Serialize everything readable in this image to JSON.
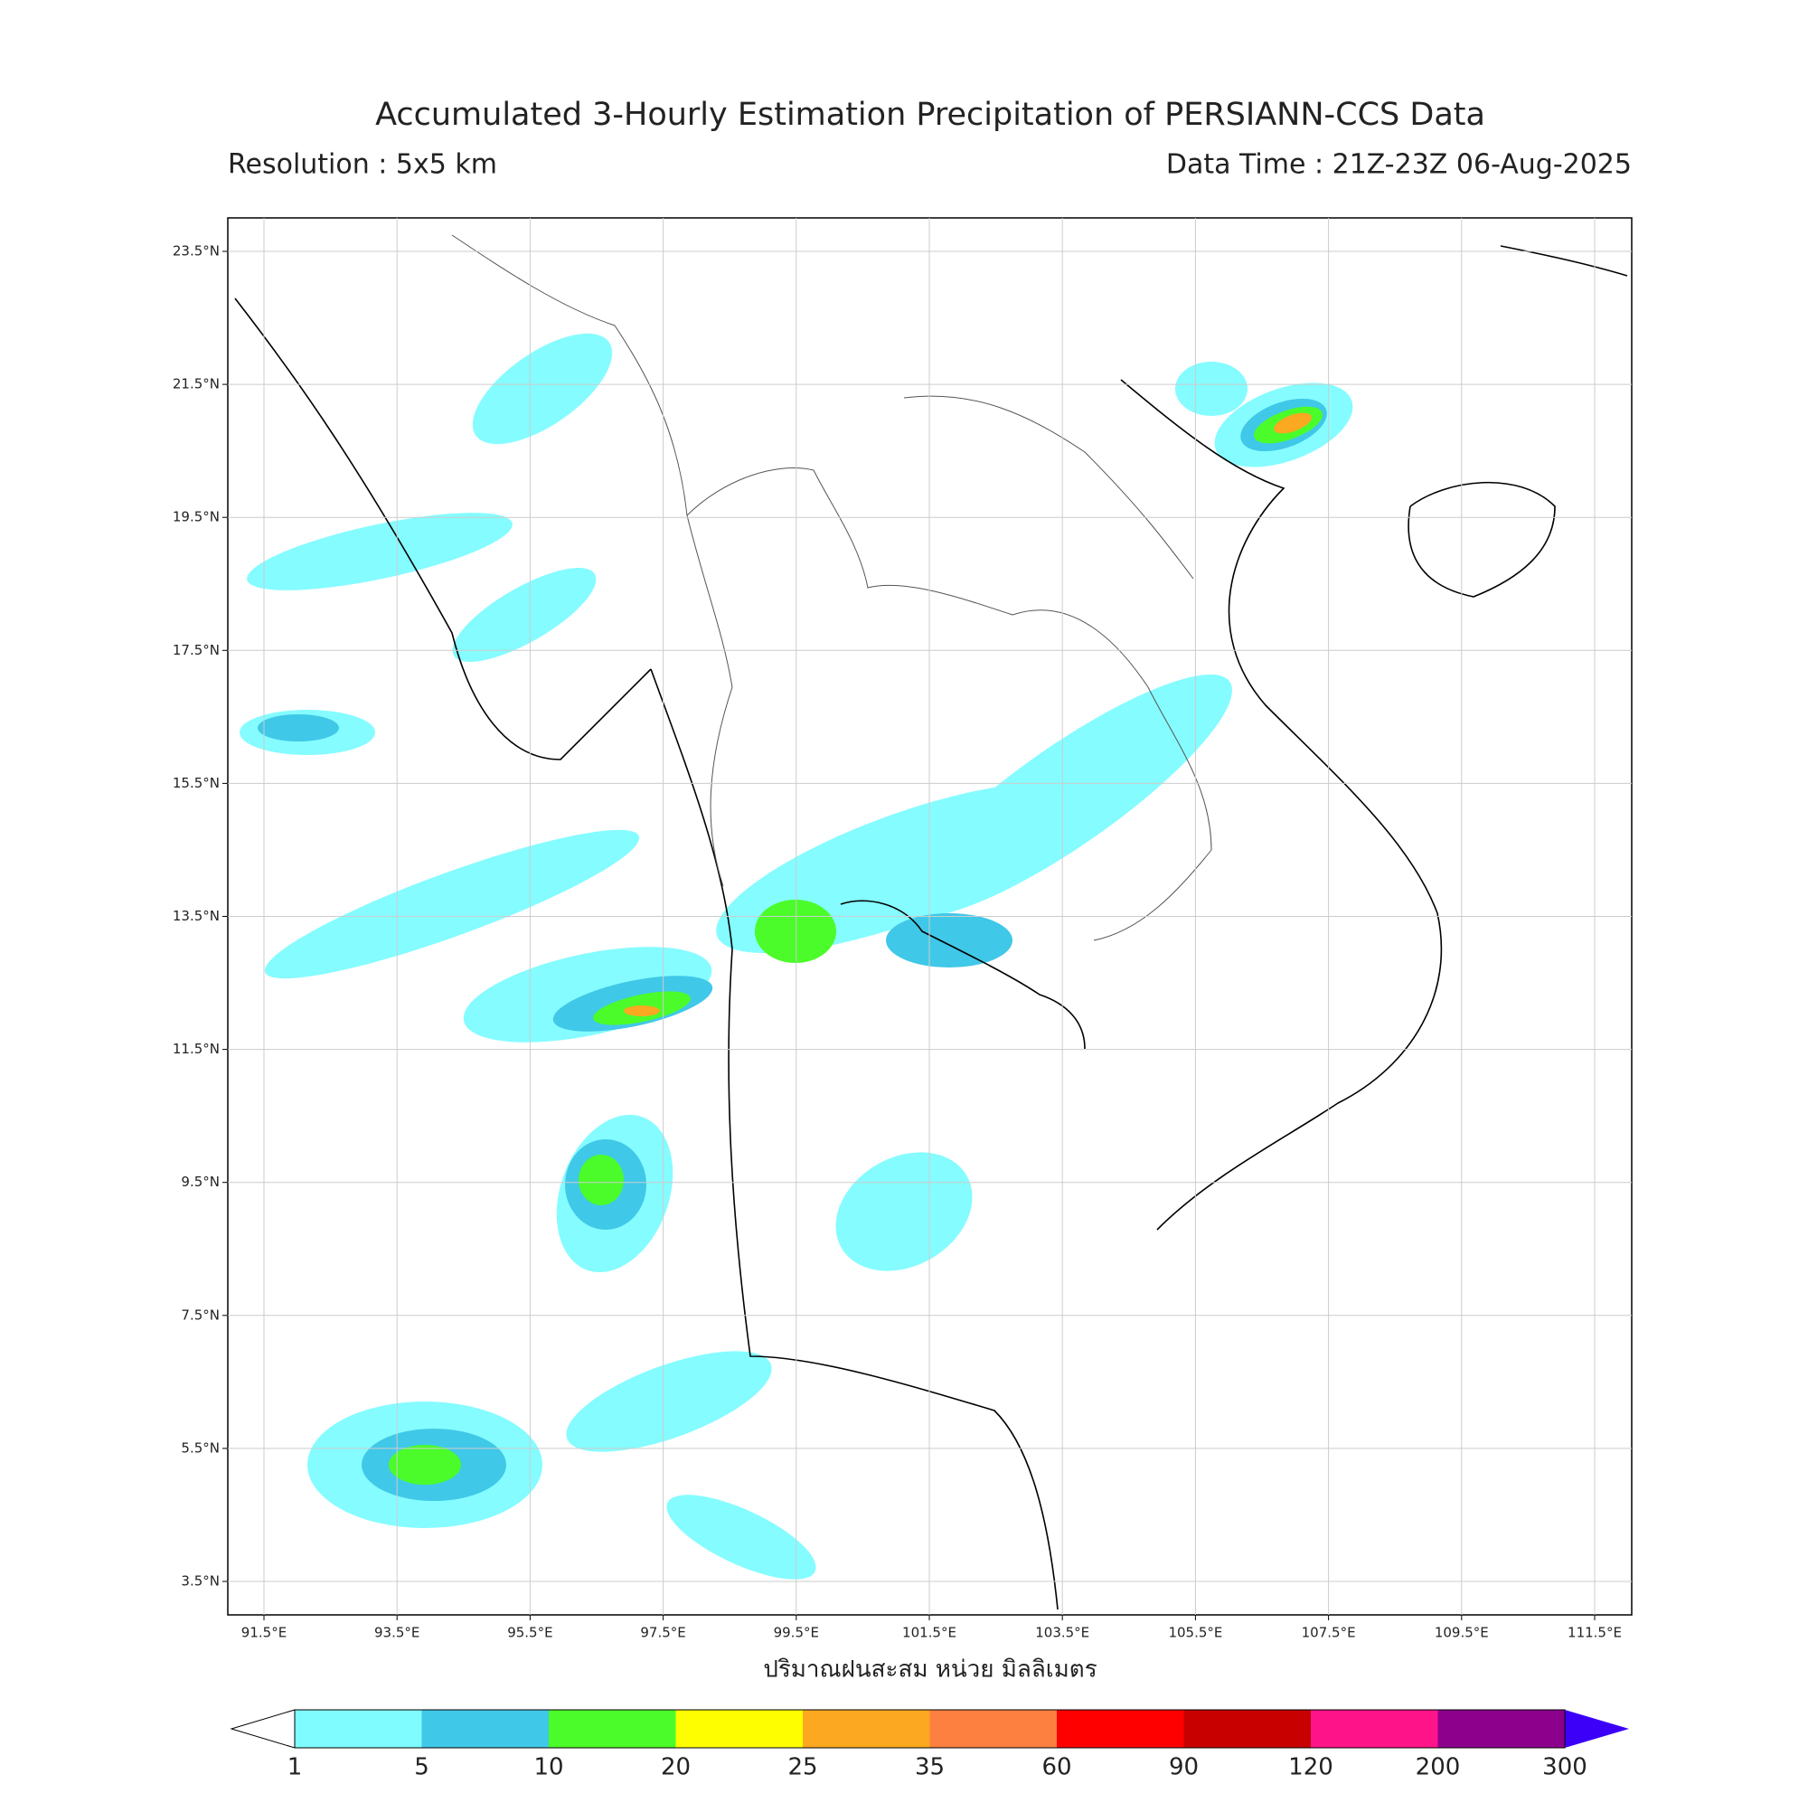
{
  "header": {
    "title": "Accumulated 3-Hourly Estimation Precipitation of PERSIANN-CCS Data",
    "resolution": "Resolution : 5x5 km",
    "data_time": "Data Time : 21Z-23Z 06-Aug-2025"
  },
  "map": {
    "lon_ticks": [
      "91.5°E",
      "93.5°E",
      "95.5°E",
      "97.5°E",
      "99.5°E",
      "101.5°E",
      "103.5°E",
      "105.5°E",
      "107.5°E",
      "109.5°E",
      "111.5°E"
    ],
    "lat_ticks": [
      "23.5°N",
      "21.5°N",
      "19.5°N",
      "17.5°N",
      "15.5°N",
      "13.5°N",
      "11.5°N",
      "9.5°N",
      "7.5°N",
      "5.5°N",
      "3.5°N"
    ],
    "xlabel": "ปริมาณฝนสะสม หน่วย มิลลิเมตร"
  },
  "colorbar": {
    "levels": [
      1,
      5,
      10,
      20,
      25,
      35,
      60,
      90,
      120,
      200,
      300
    ],
    "colors": [
      "#7ffcff",
      "#40c8e8",
      "#4bfc2a",
      "#fefe00",
      "#fca820",
      "#fd8040",
      "#fe0000",
      "#c80000",
      "#fe1488",
      "#8c008c",
      "#3c00f8"
    ]
  }
}
